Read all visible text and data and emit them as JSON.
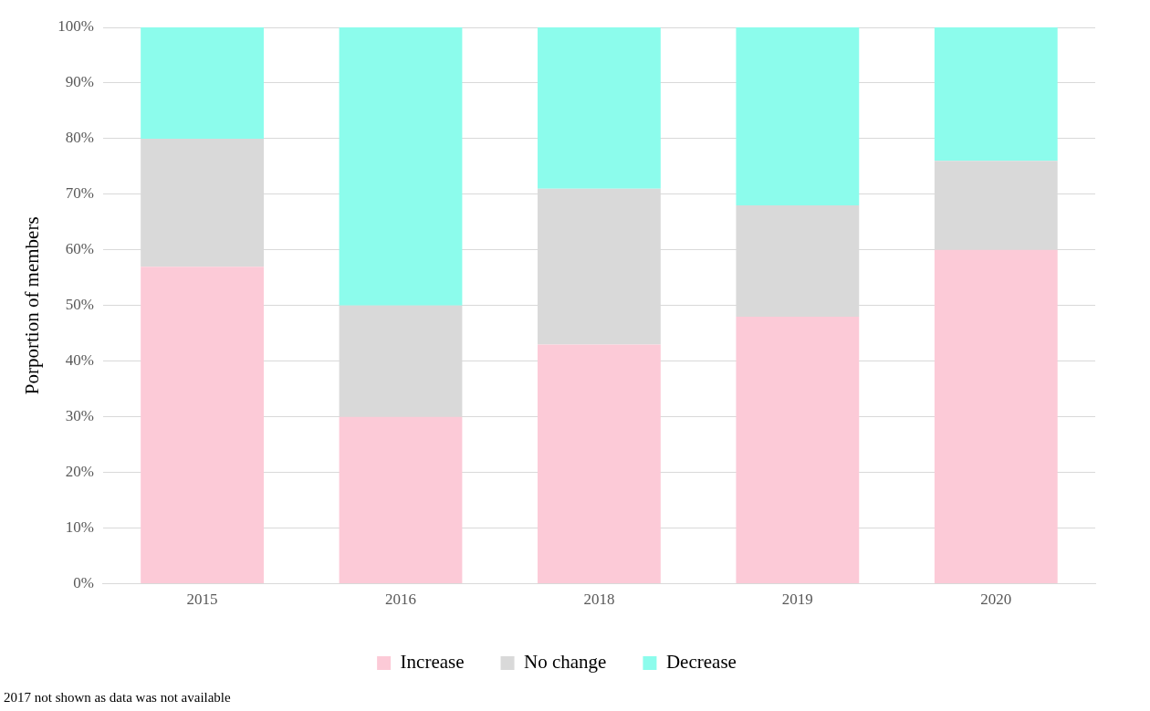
{
  "chart_data": {
    "type": "bar",
    "stacked": true,
    "ylabel": "Porportion of members",
    "categories": [
      "2015",
      "2016",
      "2018",
      "2019",
      "2020"
    ],
    "series": [
      {
        "name": "Increase",
        "color": "#fccad7",
        "values": [
          57,
          30,
          43,
          48,
          60
        ]
      },
      {
        "name": "No change",
        "color": "#d9d9d9",
        "values": [
          23,
          20,
          28,
          20,
          16
        ]
      },
      {
        "name": "Decrease",
        "color": "#8cfcec",
        "values": [
          20,
          50,
          29,
          32,
          24
        ]
      }
    ],
    "ylim": [
      0,
      100
    ],
    "yticks": [
      {
        "value": 0,
        "label": "0%"
      },
      {
        "value": 10,
        "label": "10%"
      },
      {
        "value": 20,
        "label": "20%"
      },
      {
        "value": 30,
        "label": "30%"
      },
      {
        "value": 40,
        "label": "40%"
      },
      {
        "value": 50,
        "label": "50%"
      },
      {
        "value": 60,
        "label": "60%"
      },
      {
        "value": 70,
        "label": "70%"
      },
      {
        "value": 80,
        "label": "80%"
      },
      {
        "value": 90,
        "label": "90%"
      },
      {
        "value": 100,
        "label": "100%"
      }
    ],
    "grid": "y",
    "legend": "bottom",
    "annotations": [
      "2017 not shown as data was not available"
    ]
  }
}
